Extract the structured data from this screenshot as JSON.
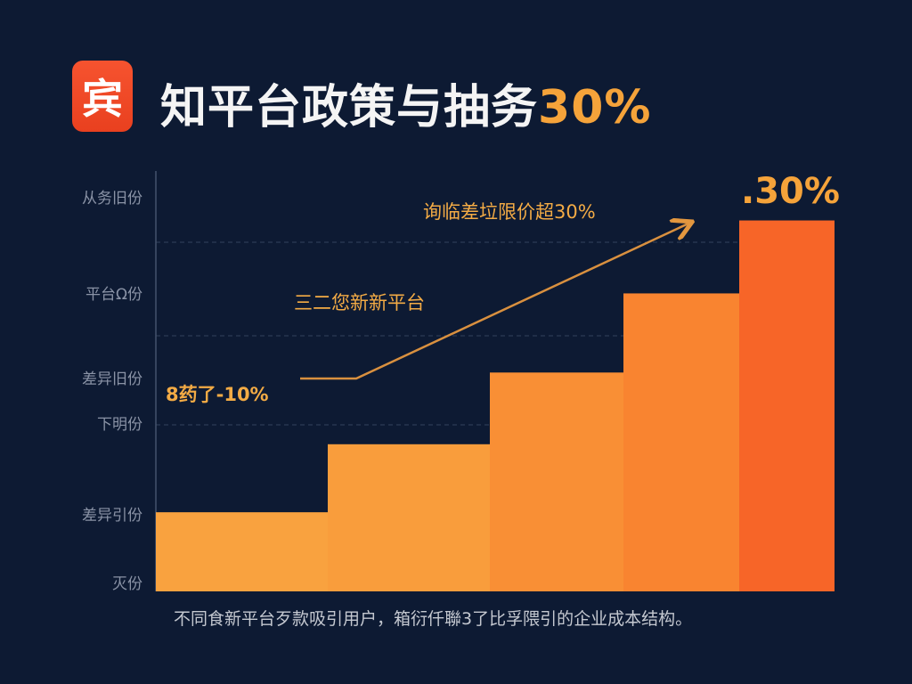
{
  "header": {
    "logo_text": "宾",
    "title": "知平台政策与抽务",
    "title_highlight": "30%"
  },
  "chart_data": {
    "type": "bar",
    "title": "知平台政策与抽务30%",
    "categories": [
      "",
      "",
      "",
      "",
      ""
    ],
    "values": [
      6.4,
      11.9,
      17.7,
      24.1,
      30
    ],
    "colors": [
      "#f9a23f",
      "#f99d3c",
      "#f98f35",
      "#f98430",
      "#f76528"
    ],
    "ylim": [
      0,
      34
    ],
    "y_tick_labels": [
      "从务旧份",
      "平台Ω份",
      "差异旧份",
      "下明份",
      "差异引份",
      "灭份"
    ],
    "grid": "dashed horizontal",
    "bar_label_last": ".30%",
    "annotations": {
      "top": "询临差垃限价超30%",
      "middle": "三二您新新平台",
      "start": "8药了-10%"
    },
    "trend_arrow_color": "#d9903f",
    "caption": "不同食新平台歹款吸引用户，箱衍仟聯3了比孚隈引的企业成本结构。"
  }
}
